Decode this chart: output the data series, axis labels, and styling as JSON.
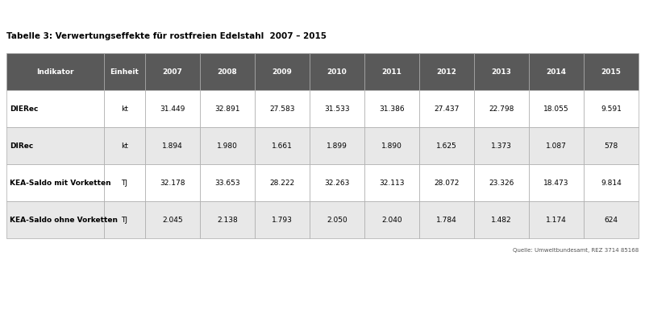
{
  "title": "Tabelle 3: Verwertungseffekte für rostfreien Edelstahl  2007 – 2015",
  "source": "Quelle: Umweltbundesamt, REZ 3714 85168",
  "header_bg": "#595959",
  "header_fg": "#ffffff",
  "row_bg_odd": "#ffffff",
  "row_bg_even": "#e8e8e8",
  "col_header": "Indikator",
  "col_einheit": "Einheit",
  "years": [
    "2007",
    "2008",
    "2009",
    "2010",
    "2011",
    "2012",
    "2013",
    "2014",
    "2015"
  ],
  "rows": [
    {
      "name": "DIERec",
      "einheit": "kt",
      "values": [
        "31.449",
        "32.891",
        "27.583",
        "31.533",
        "31.386",
        "27.437",
        "22.798",
        "18.055",
        "9.591"
      ]
    },
    {
      "name": "DIRec",
      "einheit": "kt",
      "values": [
        "1.894",
        "1.980",
        "1.661",
        "1.899",
        "1.890",
        "1.625",
        "1.373",
        "1.087",
        "578"
      ]
    },
    {
      "name": "KEA-Saldo mit Vorketten",
      "einheit": "TJ",
      "values": [
        "32.178",
        "33.653",
        "28.222",
        "32.263",
        "32.113",
        "28.072",
        "23.326",
        "18.473",
        "9.814"
      ]
    },
    {
      "name": "KEA-Saldo ohne Vorketten",
      "einheit": "TJ",
      "values": [
        "2.045",
        "2.138",
        "1.793",
        "2.050",
        "2.040",
        "1.784",
        "1.482",
        "1.174",
        "624"
      ]
    }
  ],
  "title_fontsize": 7.5,
  "header_fontsize": 6.5,
  "cell_fontsize": 6.5,
  "source_fontsize": 5.0
}
